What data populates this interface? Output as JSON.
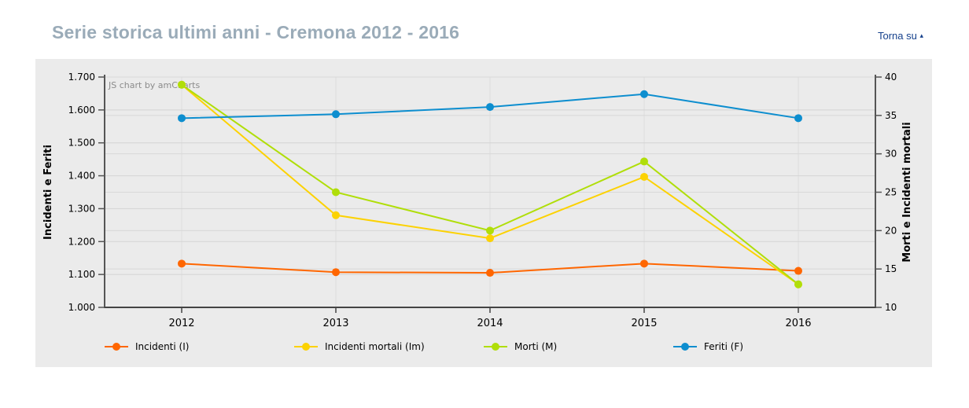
{
  "header": {
    "title": "Serie storica ultimi anni - Cremona 2012 - 2016",
    "title_color": "#9aabb8",
    "back_to_top": "Torna su",
    "back_to_top_arrow": "▴",
    "link_color": "#16418c"
  },
  "chart_data": {
    "type": "line",
    "watermark": "JS chart by amCharts",
    "categories": [
      "2012",
      "2013",
      "2014",
      "2015",
      "2016"
    ],
    "series": [
      {
        "id": "incidenti",
        "name": "Incidenti (I)",
        "axis": "left",
        "color": "#FF6600",
        "values": [
          1133,
          1107,
          1105,
          1133,
          1111
        ]
      },
      {
        "id": "incidenti-mortali",
        "name": "Incidenti mortali (Im)",
        "axis": "right",
        "color": "#FCD202",
        "values": [
          39,
          22,
          19,
          27,
          13
        ]
      },
      {
        "id": "morti",
        "name": "Morti (M)",
        "axis": "right",
        "color": "#B0DE09",
        "values": [
          39,
          25,
          20,
          29,
          13
        ]
      },
      {
        "id": "feriti",
        "name": "Feriti (F)",
        "axis": "left",
        "color": "#0D8ECF",
        "values": [
          1575,
          1587,
          1609,
          1648,
          1575
        ]
      }
    ],
    "left_axis": {
      "title": "Incidenti e Feriti",
      "min": 1000,
      "max": 1700,
      "step": 100,
      "tick_labels": [
        "1.000",
        "1.100",
        "1.200",
        "1.300",
        "1.400",
        "1.500",
        "1.600",
        "1.700"
      ]
    },
    "right_axis": {
      "title": "Morti e Incidenti mortali",
      "min": 10,
      "max": 40,
      "step": 5,
      "tick_labels": [
        "10",
        "15",
        "20",
        "25",
        "30",
        "35",
        "40"
      ]
    },
    "grid": true,
    "legend_position": "bottom",
    "panel_background": "#ebebeb"
  }
}
